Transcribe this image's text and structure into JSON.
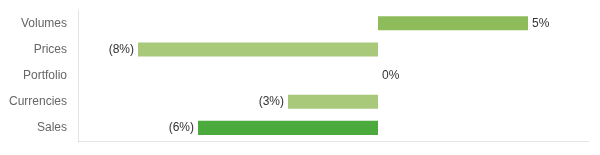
{
  "chart_data": {
    "type": "bar",
    "orientation": "horizontal",
    "categories": [
      "Volumes",
      "Prices",
      "Portfolio",
      "Currencies",
      "Sales"
    ],
    "values": [
      5,
      -8,
      0,
      -3,
      -6
    ],
    "value_labels": [
      "5%",
      "(8%)",
      "0%",
      "(3%)",
      "(6%)"
    ],
    "colors": [
      "#8fbc5a",
      "#a8c87a",
      "#a8c87a",
      "#a8c87a",
      "#4aaa3c"
    ],
    "xlim": [
      -10,
      7
    ],
    "grid": false,
    "data_labels": true,
    "tick_labels": "y"
  }
}
